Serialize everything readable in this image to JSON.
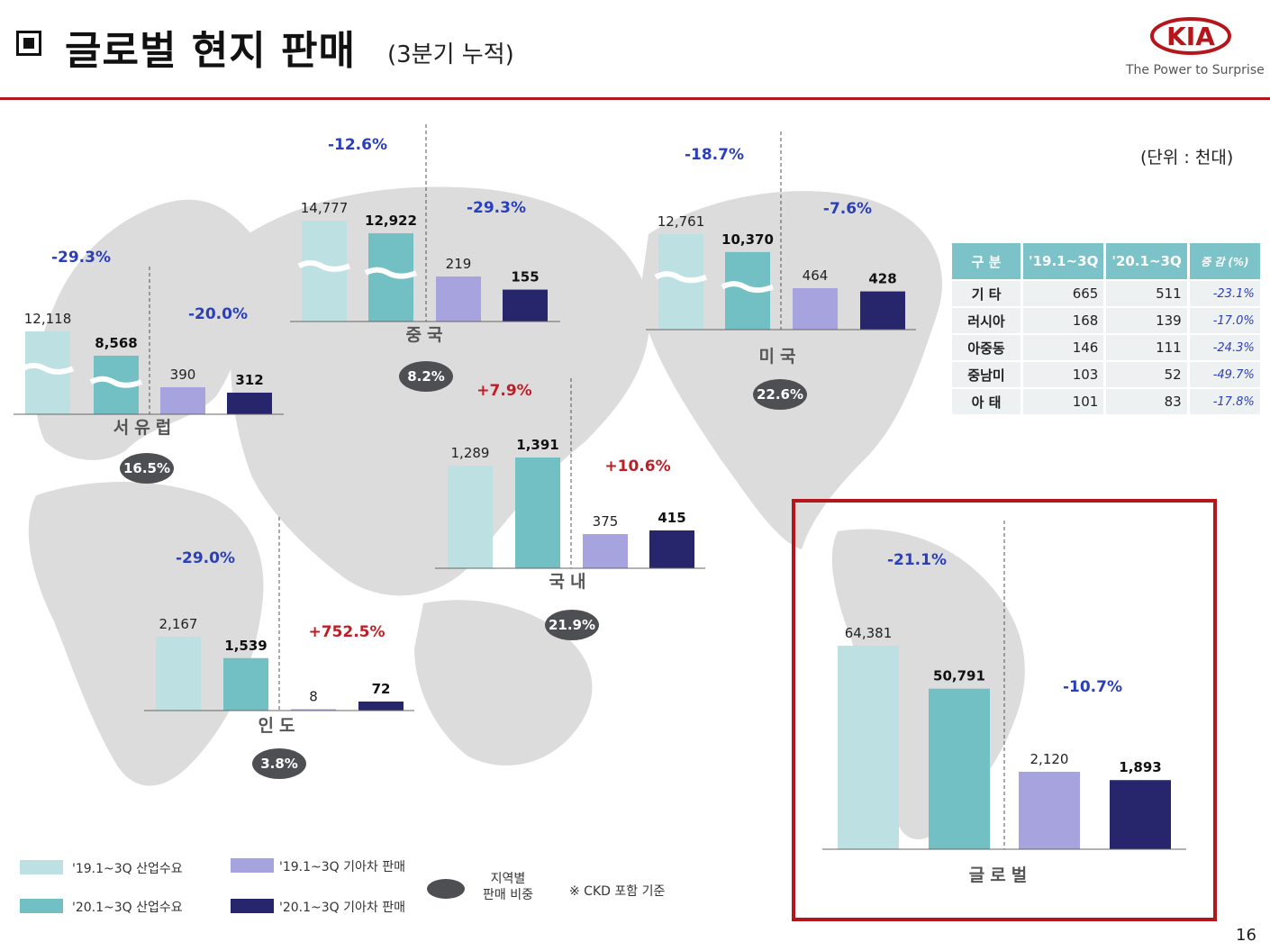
{
  "header": {
    "title": "글로벌 현지 판매",
    "title_sub": "(3분기 누적)",
    "brand": "KIA",
    "tagline": "The Power to Surprise",
    "unit": "(단위 : 천대)",
    "page_number": "16"
  },
  "colors": {
    "industry_2019": "#bde1e3",
    "industry_2020": "#72bfc4",
    "kia_2019": "#a7a3df",
    "kia_2020": "#27266c",
    "accent_red": "#b5161c",
    "pct_blue": "#2b3fb8",
    "pct_red": "#c01d27"
  },
  "chart_data": {
    "type": "bar",
    "series_names": [
      "'19.1~3Q 산업수요",
      "'20.1~3Q 산업수요",
      "'19.1~3Q 기아차 판매",
      "'20.1~3Q 기아차 판매"
    ],
    "regions": [
      {
        "id": "west-europe",
        "name": "서유럽",
        "share": "16.5%",
        "values": [
          12118,
          8568,
          390,
          312
        ],
        "value_labels": [
          "12,118",
          "8,568",
          "390",
          "312"
        ],
        "industry_change": "-29.3%",
        "kia_change": "-20.0%"
      },
      {
        "id": "china",
        "name": "중국",
        "share": "8.2%",
        "values": [
          14777,
          12922,
          219,
          155
        ],
        "value_labels": [
          "14,777",
          "12,922",
          "219",
          "155"
        ],
        "industry_change": "-12.6%",
        "kia_change": "-29.3%"
      },
      {
        "id": "usa",
        "name": "미국",
        "share": "22.6%",
        "values": [
          12761,
          10370,
          464,
          428
        ],
        "value_labels": [
          "12,761",
          "10,370",
          "464",
          "428"
        ],
        "industry_change": "-18.7%",
        "kia_change": "-7.6%"
      },
      {
        "id": "korea",
        "name": "국내",
        "share": "21.9%",
        "values": [
          1289,
          1391,
          375,
          415
        ],
        "value_labels": [
          "1,289",
          "1,391",
          "375",
          "415"
        ],
        "industry_change": "+7.9%",
        "kia_change": "+10.6%"
      },
      {
        "id": "india",
        "name": "인도",
        "share": "3.8%",
        "values": [
          2167,
          1539,
          8,
          72
        ],
        "value_labels": [
          "2,167",
          "1,539",
          "8",
          "72"
        ],
        "industry_change": "-29.0%",
        "kia_change": "+752.5%"
      },
      {
        "id": "global",
        "name": "글로벌",
        "share": "",
        "values": [
          64381,
          50791,
          2120,
          1893
        ],
        "value_labels": [
          "64,381",
          "50,791",
          "2,120",
          "1,893"
        ],
        "industry_change": "-21.1%",
        "kia_change": "-10.7%"
      }
    ]
  },
  "others_table": {
    "headers": [
      "구 분",
      "'19.1~3Q",
      "'20.1~3Q",
      "증 감 (%)"
    ],
    "rows": [
      {
        "name": "기 타",
        "y2019": "665",
        "y2020": "511",
        "change": "-23.1%"
      },
      {
        "name": "러시아",
        "y2019": "168",
        "y2020": "139",
        "change": "-17.0%"
      },
      {
        "name": "아중동",
        "y2019": "146",
        "y2020": "111",
        "change": "-24.3%"
      },
      {
        "name": "중남미",
        "y2019": "103",
        "y2020": "52",
        "change": "-49.7%"
      },
      {
        "name": "아 태",
        "y2019": "101",
        "y2020": "83",
        "change": "-17.8%"
      }
    ]
  },
  "legend": {
    "items": [
      "'19.1~3Q 산업수요",
      "'20.1~3Q 산업수요",
      "'19.1~3Q 기아차 판매",
      "'20.1~3Q 기아차 판매"
    ],
    "share_label": "지역별\n판매 비중",
    "note": "※  CKD 포함 기준"
  }
}
